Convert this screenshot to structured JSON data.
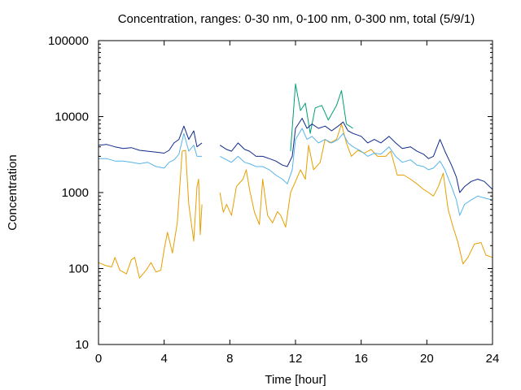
{
  "chart_data": {
    "type": "line",
    "title": "Concentration, ranges: 0-30 nm, 0-100 nm, 0-300 nm, total (5/9/1)",
    "xlabel": "Time [hour]",
    "ylabel": "Concentration",
    "xlim": [
      0,
      24
    ],
    "ylim": [
      10,
      100000
    ],
    "yscale": "log",
    "grid": false,
    "legend": "none",
    "x_ticks": [
      "0",
      "4",
      "8",
      "12",
      "16",
      "20",
      "24"
    ],
    "y_ticks": [
      "10",
      "100",
      "1000",
      "10000",
      "100000"
    ],
    "x_tick_values": [
      0,
      4,
      8,
      12,
      16,
      20,
      24
    ],
    "y_tick_values": [
      10,
      100,
      1000,
      10000,
      100000
    ],
    "series": [
      {
        "color": "#e69f00",
        "points": [
          [
            0,
            120
          ],
          [
            0.4,
            110
          ],
          [
            0.8,
            105
          ],
          [
            1.0,
            140
          ],
          [
            1.3,
            95
          ],
          [
            1.7,
            85
          ],
          [
            2.0,
            130
          ],
          [
            2.2,
            140
          ],
          [
            2.5,
            75
          ],
          [
            2.9,
            95
          ],
          [
            3.2,
            120
          ],
          [
            3.5,
            90
          ],
          [
            3.8,
            95
          ],
          [
            4.0,
            180
          ],
          [
            4.2,
            300
          ],
          [
            4.5,
            160
          ],
          [
            4.8,
            400
          ],
          [
            5.1,
            3500
          ],
          [
            5.3,
            3600
          ],
          [
            5.5,
            700
          ],
          [
            5.8,
            230
          ],
          [
            6.0,
            1200
          ],
          [
            6.1,
            1500
          ],
          [
            6.2,
            280
          ],
          [
            6.3,
            700
          ],
          null,
          [
            7.4,
            1000
          ],
          [
            7.6,
            550
          ],
          [
            7.8,
            700
          ],
          [
            8.1,
            500
          ],
          [
            8.4,
            1200
          ],
          [
            8.8,
            1500
          ],
          [
            9.0,
            2000
          ],
          [
            9.2,
            1100
          ],
          [
            9.5,
            550
          ],
          [
            9.8,
            380
          ],
          [
            10.0,
            1500
          ],
          [
            10.3,
            500
          ],
          [
            10.6,
            400
          ],
          [
            10.9,
            560
          ],
          [
            11.1,
            500
          ],
          [
            11.4,
            350
          ],
          [
            11.7,
            1000
          ],
          [
            12.0,
            1400
          ],
          [
            12.3,
            2000
          ],
          [
            12.6,
            1500
          ],
          [
            12.8,
            4200
          ],
          [
            13.1,
            2000
          ],
          [
            13.5,
            2500
          ],
          [
            13.8,
            5000
          ],
          [
            14.1,
            4500
          ],
          [
            14.5,
            5000
          ],
          [
            14.8,
            8000
          ],
          [
            15.1,
            4500
          ],
          [
            15.4,
            3000
          ],
          [
            15.8,
            3600
          ],
          [
            16.2,
            3300
          ],
          [
            16.6,
            3700
          ],
          [
            17.0,
            3000
          ],
          [
            17.5,
            3000
          ],
          [
            17.8,
            3500
          ],
          [
            18.2,
            1700
          ],
          [
            18.6,
            1700
          ],
          [
            19.0,
            1500
          ],
          [
            19.4,
            1300
          ],
          [
            19.8,
            1100
          ],
          [
            20.1,
            1000
          ],
          [
            20.4,
            900
          ],
          [
            20.7,
            1200
          ],
          [
            21.0,
            1800
          ],
          [
            21.3,
            600
          ],
          [
            21.6,
            350
          ],
          [
            21.9,
            220
          ],
          [
            22.2,
            115
          ],
          [
            22.5,
            140
          ],
          [
            22.9,
            210
          ],
          [
            23.3,
            220
          ],
          [
            23.6,
            150
          ],
          [
            24.0,
            140
          ]
        ]
      },
      {
        "color": "#56b4e9",
        "points": [
          [
            0,
            2800
          ],
          [
            0.5,
            2800
          ],
          [
            1.0,
            2600
          ],
          [
            1.5,
            2600
          ],
          [
            2.0,
            2500
          ],
          [
            2.5,
            2400
          ],
          [
            3.0,
            2500
          ],
          [
            3.5,
            2200
          ],
          [
            4.0,
            2100
          ],
          [
            4.3,
            2500
          ],
          [
            4.6,
            2700
          ],
          [
            4.9,
            3200
          ],
          [
            5.2,
            6000
          ],
          [
            5.5,
            3500
          ],
          [
            5.8,
            4200
          ],
          [
            6.0,
            3000
          ],
          [
            6.3,
            3000
          ],
          null,
          [
            7.4,
            3000
          ],
          [
            7.8,
            2700
          ],
          [
            8.1,
            2500
          ],
          [
            8.5,
            3000
          ],
          [
            8.9,
            2500
          ],
          [
            9.2,
            2400
          ],
          [
            9.6,
            2200
          ],
          [
            10.0,
            2200
          ],
          [
            10.4,
            2000
          ],
          [
            10.8,
            1700
          ],
          [
            11.2,
            1500
          ],
          [
            11.5,
            1300
          ],
          [
            11.8,
            2000
          ],
          [
            12.0,
            5000
          ],
          [
            12.4,
            7000
          ],
          [
            12.7,
            5000
          ],
          [
            13.0,
            5500
          ],
          [
            13.4,
            4500
          ],
          [
            13.8,
            5000
          ],
          [
            14.2,
            4500
          ],
          [
            14.6,
            5000
          ],
          [
            14.9,
            6000
          ],
          [
            15.2,
            4500
          ],
          [
            15.5,
            4000
          ],
          [
            16.0,
            3500
          ],
          [
            16.4,
            3000
          ],
          [
            16.8,
            3300
          ],
          [
            17.2,
            3200
          ],
          [
            17.7,
            4000
          ],
          [
            18.1,
            3000
          ],
          [
            18.5,
            2500
          ],
          [
            19.0,
            2700
          ],
          [
            19.4,
            2300
          ],
          [
            19.8,
            2200
          ],
          [
            20.1,
            2000
          ],
          [
            20.4,
            2100
          ],
          [
            20.8,
            2600
          ],
          [
            21.1,
            2000
          ],
          [
            21.5,
            1200
          ],
          [
            21.8,
            800
          ],
          [
            22.0,
            500
          ],
          [
            22.3,
            700
          ],
          [
            22.7,
            800
          ],
          [
            23.1,
            900
          ],
          [
            23.5,
            850
          ],
          [
            24.0,
            800
          ]
        ]
      },
      {
        "color": "#009e73",
        "points": [
          [
            11.7,
            3500
          ],
          [
            12.0,
            27000
          ],
          [
            12.3,
            12000
          ],
          [
            12.6,
            15000
          ],
          [
            12.9,
            6000
          ],
          [
            13.2,
            13000
          ],
          [
            13.6,
            14000
          ],
          [
            14.0,
            9000
          ],
          [
            14.5,
            14000
          ],
          [
            14.8,
            22000
          ],
          [
            15.1,
            8000
          ],
          [
            15.5,
            7000
          ]
        ]
      },
      {
        "color": "#0f2a8a",
        "points": [
          [
            0,
            4200
          ],
          [
            0.5,
            4300
          ],
          [
            1.0,
            4000
          ],
          [
            1.5,
            3800
          ],
          [
            2.0,
            3900
          ],
          [
            2.5,
            3600
          ],
          [
            3.0,
            3500
          ],
          [
            3.5,
            3400
          ],
          [
            4.0,
            3300
          ],
          [
            4.3,
            3600
          ],
          [
            4.6,
            4500
          ],
          [
            4.9,
            5000
          ],
          [
            5.2,
            7500
          ],
          [
            5.5,
            5000
          ],
          [
            5.8,
            6500
          ],
          [
            6.0,
            4000
          ],
          [
            6.3,
            4500
          ],
          null,
          [
            7.4,
            4200
          ],
          [
            7.8,
            3700
          ],
          [
            8.1,
            3500
          ],
          [
            8.5,
            4500
          ],
          [
            8.9,
            3700
          ],
          [
            9.2,
            3500
          ],
          [
            9.6,
            3000
          ],
          [
            10.0,
            3000
          ],
          [
            10.4,
            2800
          ],
          [
            10.8,
            2600
          ],
          [
            11.2,
            2300
          ],
          [
            11.5,
            2200
          ],
          [
            11.8,
            3000
          ],
          [
            12.0,
            7000
          ],
          [
            12.4,
            9500
          ],
          [
            12.7,
            7000
          ],
          [
            13.0,
            8000
          ],
          [
            13.4,
            7000
          ],
          [
            13.8,
            7500
          ],
          [
            14.2,
            6500
          ],
          [
            14.6,
            7500
          ],
          [
            14.9,
            8500
          ],
          [
            15.2,
            6500
          ],
          [
            15.5,
            6000
          ],
          [
            16.0,
            5500
          ],
          [
            16.4,
            4500
          ],
          [
            16.8,
            5000
          ],
          [
            17.2,
            4500
          ],
          [
            17.7,
            5500
          ],
          [
            18.1,
            4500
          ],
          [
            18.5,
            3800
          ],
          [
            19.0,
            4000
          ],
          [
            19.4,
            3500
          ],
          [
            19.8,
            3200
          ],
          [
            20.1,
            2800
          ],
          [
            20.4,
            3000
          ],
          [
            20.8,
            5000
          ],
          [
            21.1,
            3500
          ],
          [
            21.5,
            2300
          ],
          [
            21.8,
            1600
          ],
          [
            22.0,
            1000
          ],
          [
            22.3,
            1200
          ],
          [
            22.7,
            1400
          ],
          [
            23.1,
            1500
          ],
          [
            23.5,
            1400
          ],
          [
            24.0,
            1100
          ]
        ]
      }
    ]
  }
}
